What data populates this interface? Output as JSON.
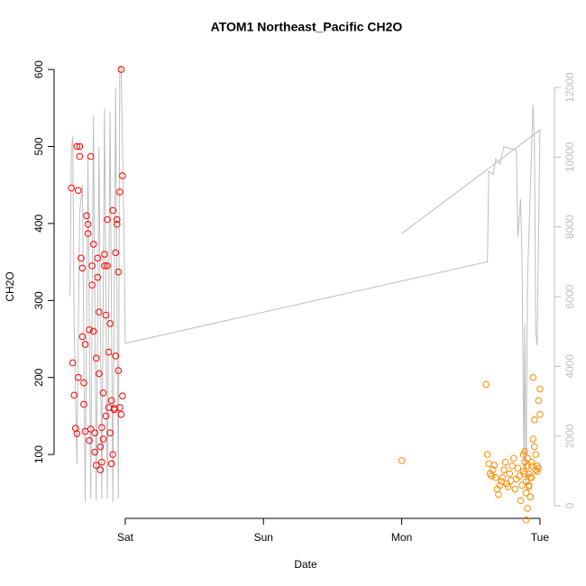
{
  "chart_data": {
    "type": "scatter",
    "title": "ATOM1 Northeast_Pacific CH2O",
    "x_label": "Date",
    "y_label": "CH2O",
    "xlim": [
      -0.515,
      3.105
    ],
    "xticks": [
      {
        "value": 0,
        "label": "Sat"
      },
      {
        "value": 1,
        "label": "Sun"
      },
      {
        "value": 2,
        "label": "Mon"
      },
      {
        "value": 3,
        "label": "Tue"
      }
    ],
    "ylim": [
      17,
      620
    ],
    "yticks": [
      100,
      200,
      300,
      400,
      500,
      600
    ],
    "y2lim": [
      -362,
      12957
    ],
    "y2ticks": [
      0,
      2000,
      4000,
      6000,
      8000,
      10000,
      12000
    ],
    "y2_color": "#bebebe",
    "series": [
      {
        "color": "#ff0000",
        "x": [
          -0.39,
          -0.38,
          -0.37,
          -0.36,
          -0.35,
          -0.35,
          -0.34,
          -0.34,
          -0.33,
          -0.33,
          -0.32,
          -0.31,
          -0.31,
          -0.3,
          -0.3,
          -0.29,
          -0.29,
          -0.28,
          -0.27,
          -0.27,
          -0.26,
          -0.26,
          -0.25,
          -0.25,
          -0.24,
          -0.24,
          -0.23,
          -0.23,
          -0.22,
          -0.22,
          -0.21,
          -0.21,
          -0.2,
          -0.2,
          -0.19,
          -0.19,
          -0.18,
          -0.18,
          -0.17,
          -0.17,
          -0.16,
          -0.16,
          -0.15,
          -0.15,
          -0.14,
          -0.14,
          -0.13,
          -0.13,
          -0.12,
          -0.12,
          -0.11,
          -0.11,
          -0.1,
          -0.1,
          -0.09,
          -0.09,
          -0.08,
          -0.08,
          -0.07,
          -0.07,
          -0.06,
          -0.06,
          -0.05,
          -0.05,
          -0.04,
          -0.04,
          -0.03,
          -0.03,
          -0.02,
          -0.02
        ],
        "values": [
          446,
          219,
          177,
          134,
          127,
          500,
          200,
          443,
          500,
          487,
          355,
          342,
          253,
          193,
          165,
          130,
          243,
          410,
          399,
          387,
          118,
          262,
          133,
          487,
          320,
          345,
          373,
          260,
          103,
          128,
          86,
          225,
          355,
          330,
          285,
          205,
          80,
          110,
          90,
          135,
          120,
          180,
          360,
          345,
          281,
          150,
          345,
          405,
          161,
          233,
          270,
          128,
          170,
          88,
          417,
          100,
          158,
          160,
          362,
          228,
          399,
          405,
          209,
          337,
          161,
          441,
          152,
          600,
          462,
          176
        ]
      },
      {
        "color": "#ff8c00",
        "x": [
          2.0,
          2.61,
          2.62,
          2.63,
          2.64,
          2.65,
          2.66,
          2.67,
          2.68,
          2.69,
          2.7,
          2.71,
          2.72,
          2.73,
          2.74,
          2.75,
          2.76,
          2.77,
          2.78,
          2.79,
          2.8,
          2.81,
          2.82,
          2.83,
          2.84,
          2.85,
          2.86,
          2.87,
          2.88,
          2.88,
          2.89,
          2.89,
          2.9,
          2.9,
          2.91,
          2.91,
          2.92,
          2.92,
          2.93,
          2.93,
          2.94,
          2.94,
          2.95,
          2.95,
          2.96,
          2.96,
          2.97,
          2.97,
          2.98,
          2.98,
          2.99,
          2.99,
          3.0,
          3.0,
          2.9,
          2.91,
          2.92,
          2.93,
          2.89,
          2.94
        ],
        "values": [
          92,
          191,
          100,
          88,
          75,
          72,
          80,
          86,
          70,
          55,
          48,
          60,
          65,
          70,
          80,
          90,
          62,
          58,
          75,
          66,
          85,
          95,
          55,
          68,
          82,
          72,
          40,
          60,
          78,
          100,
          90,
          104,
          65,
          50,
          95,
          85,
          60,
          75,
          45,
          70,
          85,
          90,
          200,
          120,
          145,
          110,
          80,
          100,
          85,
          78,
          82,
          170,
          185,
          152,
          15,
          30,
          58,
          45,
          75,
          70
        ]
      },
      {
        "color": "#bebebe",
        "type": "line",
        "axis": "y2",
        "x": [
          -0.4,
          -0.39,
          -0.38,
          -0.37,
          -0.35,
          -0.33,
          -0.31,
          -0.29,
          -0.27,
          -0.25,
          -0.23,
          -0.21,
          -0.19,
          -0.17,
          -0.15,
          -0.13,
          -0.11,
          -0.09,
          -0.07,
          -0.05,
          -0.04,
          -0.03,
          -0.01,
          0.0,
          2.62,
          2.63,
          2.66,
          2.68,
          2.71,
          2.74,
          2.83,
          2.84,
          2.86,
          2.87,
          2.885,
          2.89,
          2.9,
          2.91,
          2.95,
          2.96,
          2.97,
          2.98,
          3.0,
          2.0
        ],
        "values": [
          6000,
          10200,
          10600,
          5200,
          1200,
          8400,
          9200,
          100,
          10000,
          200,
          11200,
          150,
          10300,
          200,
          11400,
          200,
          11300,
          100,
          12000,
          200,
          12600,
          12600,
          8000,
          4660,
          7000,
          9600,
          9500,
          9950,
          9800,
          10300,
          10200,
          7700,
          8800,
          7200,
          1000,
          5200,
          500,
          6500,
          11500,
          10500,
          5000,
          4600,
          10780,
          7810
        ]
      }
    ]
  }
}
